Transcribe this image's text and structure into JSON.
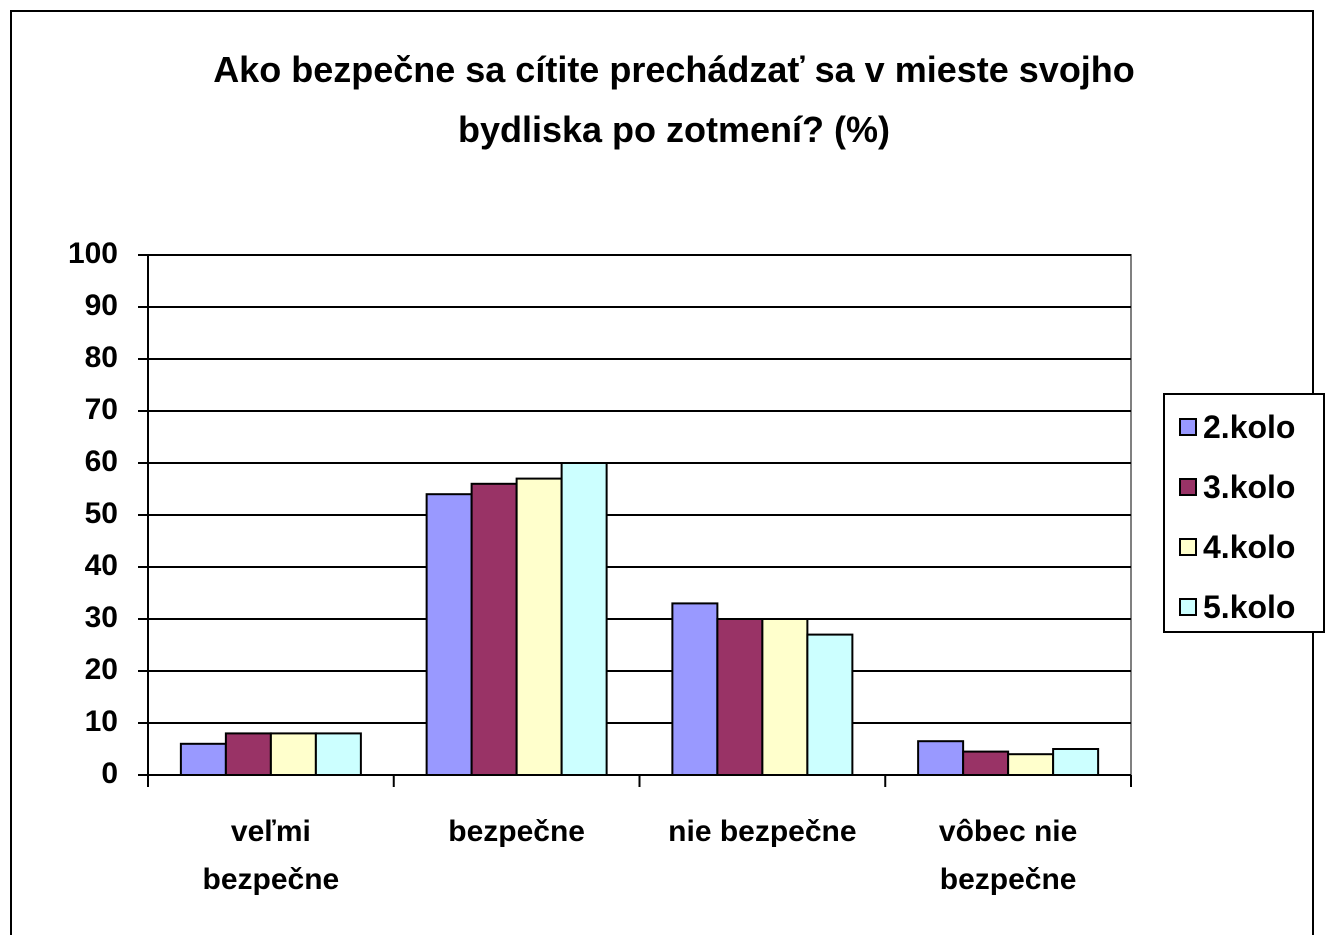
{
  "chart_data": {
    "type": "bar",
    "title": "Ako bezpečne sa cítite prechádzať sa v mieste svojho bydliska po zotmení? (%)",
    "categories": [
      "veľmi bezpečne",
      "bezpečne",
      "nie bezpečne",
      "vôbec nie bezpečne"
    ],
    "series": [
      {
        "name": "2.kolo",
        "color": "#9999ff",
        "values": [
          6,
          54,
          33,
          6.5
        ]
      },
      {
        "name": "3.kolo",
        "color": "#993366",
        "values": [
          8,
          56,
          30,
          4.5
        ]
      },
      {
        "name": "4.kolo",
        "color": "#ffffcc",
        "values": [
          8,
          57,
          30,
          4
        ]
      },
      {
        "name": "5.kolo",
        "color": "#ccffff",
        "values": [
          8,
          60,
          27,
          5
        ]
      }
    ],
    "ylim": [
      0,
      100
    ],
    "yticks": [
      0,
      10,
      20,
      30,
      40,
      50,
      60,
      70,
      80,
      90,
      100
    ],
    "grid": true,
    "legend": "right"
  }
}
